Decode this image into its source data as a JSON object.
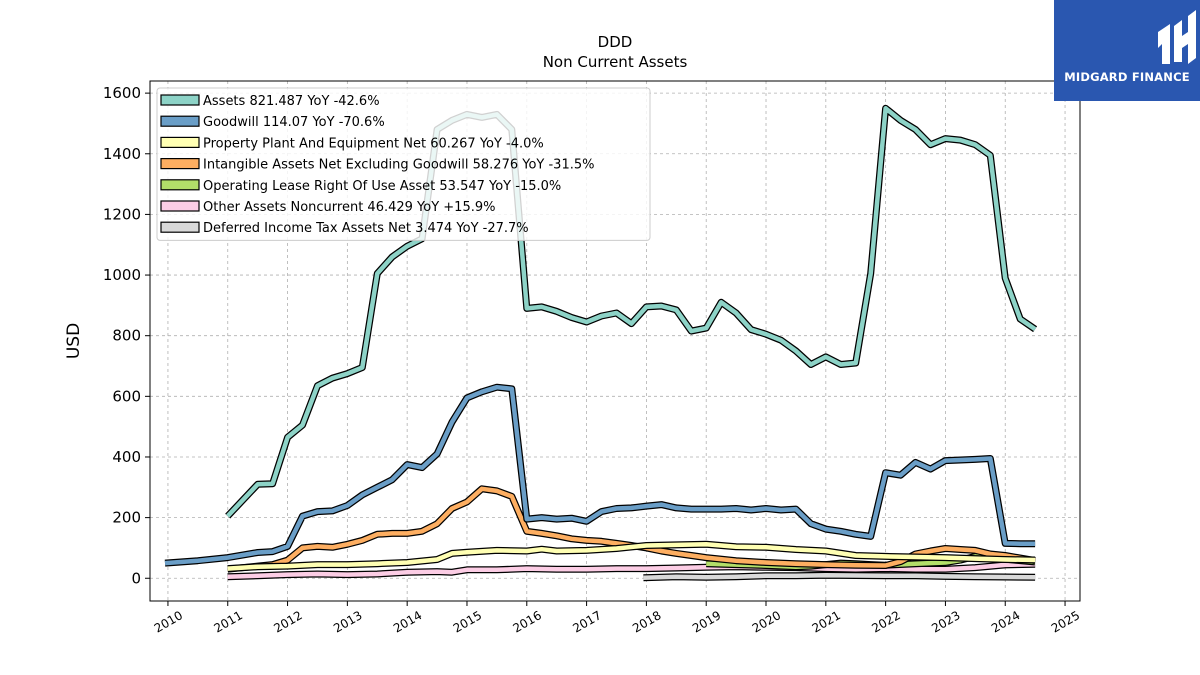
{
  "logo": {
    "text": "MIDGARD FINANCE",
    "color": "#2a57b0"
  },
  "chart_data": {
    "type": "line",
    "title": "DDD",
    "subtitle": "Non Current  Assets",
    "ylabel": "USD",
    "xlabel": "",
    "xlim": [
      2009.7,
      2025.25
    ],
    "ylim": [
      -75,
      1640
    ],
    "yticks": [
      0,
      200,
      400,
      600,
      800,
      1000,
      1200,
      1400,
      1600
    ],
    "xticks": [
      2010,
      2011,
      2012,
      2013,
      2014,
      2015,
      2016,
      2017,
      2018,
      2019,
      2020,
      2021,
      2022,
      2023,
      2024,
      2025
    ],
    "grid": true,
    "legend_position": "top-left",
    "series": [
      {
        "name": "Assets  821.487 YoY -42.6%",
        "color": "#8dd3c7",
        "points": [
          [
            2011.0,
            205
          ],
          [
            2011.5,
            310
          ],
          [
            2011.75,
            312
          ],
          [
            2012.0,
            465
          ],
          [
            2012.25,
            505
          ],
          [
            2012.5,
            635
          ],
          [
            2012.75,
            660
          ],
          [
            2013.0,
            675
          ],
          [
            2013.25,
            695
          ],
          [
            2013.5,
            1005
          ],
          [
            2013.75,
            1060
          ],
          [
            2014.0,
            1095
          ],
          [
            2014.25,
            1120
          ],
          [
            2014.5,
            1480
          ],
          [
            2014.75,
            1510
          ],
          [
            2015.0,
            1530
          ],
          [
            2015.25,
            1520
          ],
          [
            2015.5,
            1530
          ],
          [
            2015.75,
            1480
          ],
          [
            2016.0,
            890
          ],
          [
            2016.25,
            895
          ],
          [
            2016.5,
            880
          ],
          [
            2016.75,
            860
          ],
          [
            2017.0,
            845
          ],
          [
            2017.25,
            865
          ],
          [
            2017.5,
            875
          ],
          [
            2017.75,
            840
          ],
          [
            2018.0,
            895
          ],
          [
            2018.25,
            898
          ],
          [
            2018.5,
            885
          ],
          [
            2018.75,
            815
          ],
          [
            2019.0,
            825
          ],
          [
            2019.25,
            910
          ],
          [
            2019.5,
            875
          ],
          [
            2019.75,
            820
          ],
          [
            2020.0,
            805
          ],
          [
            2020.25,
            785
          ],
          [
            2020.5,
            750
          ],
          [
            2020.75,
            705
          ],
          [
            2021.0,
            730
          ],
          [
            2021.25,
            705
          ],
          [
            2021.5,
            710
          ],
          [
            2021.75,
            1005
          ],
          [
            2022.0,
            1550
          ],
          [
            2022.25,
            1510
          ],
          [
            2022.5,
            1480
          ],
          [
            2022.75,
            1430
          ],
          [
            2023.0,
            1450
          ],
          [
            2023.25,
            1445
          ],
          [
            2023.5,
            1430
          ],
          [
            2023.75,
            1395
          ],
          [
            2024.0,
            990
          ],
          [
            2024.25,
            855
          ],
          [
            2024.5,
            821.487
          ]
        ]
      },
      {
        "name": "Goodwill  114.07 YoY -70.6%",
        "color": "#6a9ec7",
        "points": [
          [
            2009.95,
            50
          ],
          [
            2010.5,
            58
          ],
          [
            2011.0,
            68
          ],
          [
            2011.5,
            85
          ],
          [
            2011.75,
            88
          ],
          [
            2012.0,
            105
          ],
          [
            2012.25,
            205
          ],
          [
            2012.5,
            220
          ],
          [
            2012.75,
            222
          ],
          [
            2013.0,
            240
          ],
          [
            2013.25,
            275
          ],
          [
            2013.5,
            300
          ],
          [
            2013.75,
            325
          ],
          [
            2014.0,
            375
          ],
          [
            2014.25,
            365
          ],
          [
            2014.5,
            410
          ],
          [
            2014.75,
            515
          ],
          [
            2015.0,
            595
          ],
          [
            2015.25,
            615
          ],
          [
            2015.5,
            630
          ],
          [
            2015.75,
            625
          ],
          [
            2016.0,
            195
          ],
          [
            2016.25,
            200
          ],
          [
            2016.5,
            195
          ],
          [
            2016.75,
            198
          ],
          [
            2017.0,
            188
          ],
          [
            2017.25,
            220
          ],
          [
            2017.5,
            230
          ],
          [
            2017.75,
            232
          ],
          [
            2018.0,
            238
          ],
          [
            2018.25,
            243
          ],
          [
            2018.5,
            232
          ],
          [
            2018.75,
            228
          ],
          [
            2019.0,
            228
          ],
          [
            2019.25,
            228
          ],
          [
            2019.5,
            230
          ],
          [
            2019.75,
            225
          ],
          [
            2020.0,
            230
          ],
          [
            2020.25,
            225
          ],
          [
            2020.5,
            228
          ],
          [
            2020.75,
            180
          ],
          [
            2021.0,
            162
          ],
          [
            2021.25,
            155
          ],
          [
            2021.5,
            145
          ],
          [
            2021.75,
            138
          ],
          [
            2022.0,
            348
          ],
          [
            2022.25,
            340
          ],
          [
            2022.5,
            382
          ],
          [
            2022.75,
            360
          ],
          [
            2023.0,
            388
          ],
          [
            2023.25,
            390
          ],
          [
            2023.5,
            392
          ],
          [
            2023.75,
            395
          ],
          [
            2024.0,
            115
          ],
          [
            2024.25,
            114
          ],
          [
            2024.5,
            114.07
          ]
        ]
      },
      {
        "name": "Property Plant And Equipment Net  60.267 YoY -4.0%",
        "color": "#ffffb3",
        "points": [
          [
            2011.0,
            32
          ],
          [
            2011.5,
            38
          ],
          [
            2012.0,
            40
          ],
          [
            2012.5,
            45
          ],
          [
            2013.0,
            45
          ],
          [
            2013.5,
            48
          ],
          [
            2014.0,
            52
          ],
          [
            2014.5,
            62
          ],
          [
            2014.75,
            82
          ],
          [
            2015.0,
            86
          ],
          [
            2015.5,
            92
          ],
          [
            2016.0,
            90
          ],
          [
            2016.25,
            96
          ],
          [
            2016.5,
            90
          ],
          [
            2017.0,
            92
          ],
          [
            2017.5,
            98
          ],
          [
            2018.0,
            108
          ],
          [
            2018.5,
            110
          ],
          [
            2019.0,
            112
          ],
          [
            2019.25,
            108
          ],
          [
            2019.5,
            104
          ],
          [
            2020.0,
            102
          ],
          [
            2020.5,
            95
          ],
          [
            2021.0,
            90
          ],
          [
            2021.5,
            75
          ],
          [
            2022.0,
            72
          ],
          [
            2022.5,
            70
          ],
          [
            2023.0,
            68
          ],
          [
            2023.5,
            65
          ],
          [
            2024.0,
            62
          ],
          [
            2024.5,
            60.267
          ]
        ]
      },
      {
        "name": "Intangible Assets Net Excluding Goodwill  58.276 YoY -31.5%",
        "color": "#fdae61",
        "points": [
          [
            2011.0,
            30
          ],
          [
            2011.5,
            40
          ],
          [
            2011.75,
            45
          ],
          [
            2012.0,
            60
          ],
          [
            2012.25,
            100
          ],
          [
            2012.5,
            105
          ],
          [
            2012.75,
            102
          ],
          [
            2013.0,
            112
          ],
          [
            2013.25,
            125
          ],
          [
            2013.5,
            145
          ],
          [
            2013.75,
            148
          ],
          [
            2014.0,
            148
          ],
          [
            2014.25,
            155
          ],
          [
            2014.5,
            180
          ],
          [
            2014.75,
            230
          ],
          [
            2015.0,
            252
          ],
          [
            2015.25,
            295
          ],
          [
            2015.5,
            288
          ],
          [
            2015.75,
            270
          ],
          [
            2016.0,
            155
          ],
          [
            2016.25,
            148
          ],
          [
            2016.5,
            140
          ],
          [
            2016.75,
            130
          ],
          [
            2017.0,
            125
          ],
          [
            2017.25,
            122
          ],
          [
            2017.5,
            115
          ],
          [
            2017.75,
            108
          ],
          [
            2018.0,
            100
          ],
          [
            2018.25,
            90
          ],
          [
            2018.5,
            82
          ],
          [
            2018.75,
            75
          ],
          [
            2019.0,
            68
          ],
          [
            2019.5,
            58
          ],
          [
            2020.0,
            52
          ],
          [
            2020.5,
            48
          ],
          [
            2021.0,
            45
          ],
          [
            2021.5,
            43
          ],
          [
            2022.0,
            42
          ],
          [
            2022.25,
            55
          ],
          [
            2022.5,
            80
          ],
          [
            2022.75,
            90
          ],
          [
            2023.0,
            98
          ],
          [
            2023.25,
            95
          ],
          [
            2023.5,
            92
          ],
          [
            2023.75,
            80
          ],
          [
            2024.0,
            75
          ],
          [
            2024.5,
            58.276
          ]
        ]
      },
      {
        "name": "Operating Lease Right Of Use Asset  53.547 YoY -15.0%",
        "color": "#b3de69",
        "points": [
          [
            2019.0,
            48
          ],
          [
            2019.5,
            45
          ],
          [
            2020.0,
            42
          ],
          [
            2020.25,
            40
          ],
          [
            2020.5,
            38
          ],
          [
            2020.75,
            40
          ],
          [
            2021.0,
            45
          ],
          [
            2021.25,
            50
          ],
          [
            2021.5,
            48
          ],
          [
            2021.75,
            45
          ],
          [
            2022.0,
            43
          ],
          [
            2022.5,
            48
          ],
          [
            2023.0,
            52
          ],
          [
            2023.25,
            60
          ],
          [
            2023.5,
            72
          ],
          [
            2023.75,
            68
          ],
          [
            2024.0,
            63
          ],
          [
            2024.5,
            53.547
          ]
        ]
      },
      {
        "name": "Other Assets Noncurrent  46.429 YoY +15.9%",
        "color": "#fccde5",
        "points": [
          [
            2011.0,
            5
          ],
          [
            2011.5,
            8
          ],
          [
            2012.0,
            12
          ],
          [
            2012.5,
            14
          ],
          [
            2013.0,
            12
          ],
          [
            2013.5,
            14
          ],
          [
            2014.0,
            20
          ],
          [
            2014.5,
            22
          ],
          [
            2014.75,
            20
          ],
          [
            2015.0,
            28
          ],
          [
            2015.5,
            28
          ],
          [
            2016.0,
            32
          ],
          [
            2016.5,
            30
          ],
          [
            2017.0,
            30
          ],
          [
            2017.5,
            32
          ],
          [
            2018.0,
            32
          ],
          [
            2018.5,
            34
          ],
          [
            2019.0,
            36
          ],
          [
            2019.5,
            38
          ],
          [
            2020.0,
            36
          ],
          [
            2020.5,
            35
          ],
          [
            2021.0,
            32
          ],
          [
            2021.5,
            30
          ],
          [
            2022.0,
            32
          ],
          [
            2022.5,
            30
          ],
          [
            2023.0,
            30
          ],
          [
            2023.5,
            35
          ],
          [
            2024.0,
            44
          ],
          [
            2024.5,
            46.429
          ]
        ]
      },
      {
        "name": "Deferred Income Tax Assets Net  3.474 YoY -27.7%",
        "color": "#d9d9d9",
        "points": [
          [
            2017.95,
            2
          ],
          [
            2018.5,
            5
          ],
          [
            2019.0,
            3
          ],
          [
            2019.5,
            5
          ],
          [
            2020.0,
            8
          ],
          [
            2020.5,
            8
          ],
          [
            2021.0,
            10
          ],
          [
            2021.5,
            9
          ],
          [
            2022.0,
            8
          ],
          [
            2022.5,
            8
          ],
          [
            2023.0,
            6
          ],
          [
            2023.5,
            5
          ],
          [
            2024.0,
            4
          ],
          [
            2024.5,
            3.474
          ]
        ]
      }
    ]
  }
}
